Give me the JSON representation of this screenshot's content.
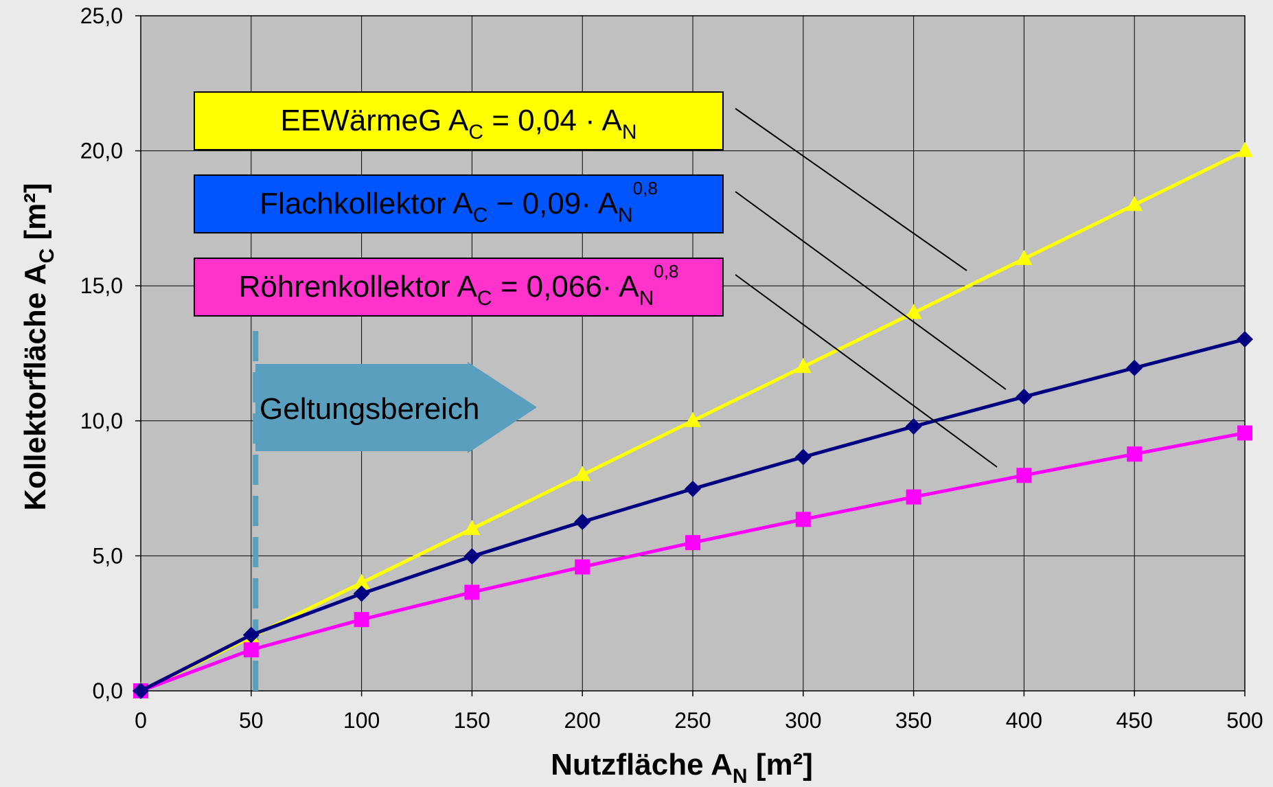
{
  "chart_data": {
    "type": "line",
    "x": [
      0,
      50,
      100,
      150,
      200,
      250,
      300,
      350,
      400,
      450,
      500
    ],
    "xlim": [
      0,
      500
    ],
    "ylim": [
      0,
      25
    ],
    "x_ticks": [
      "0",
      "50",
      "100",
      "150",
      "200",
      "250",
      "300",
      "350",
      "400",
      "450",
      "500"
    ],
    "y_ticks": [
      "0,0",
      "5,0",
      "10,0",
      "15,0",
      "20,0",
      "25,0"
    ],
    "y_tick_values": [
      0,
      5,
      10,
      15,
      20,
      25
    ],
    "grid": true,
    "xlabel": {
      "main": "Nutzfläche A",
      "sub": "N",
      "unit": " [m²]"
    },
    "ylabel": {
      "main": "Kollektorfläche A",
      "sub": "C",
      "unit": " [m²]"
    },
    "series": [
      {
        "color": "#ffff00",
        "marker": "triangle",
        "values": [
          0,
          2.0,
          4.0,
          6.0,
          8.0,
          10.0,
          12.0,
          14.0,
          16.0,
          18.0,
          20.0
        ]
      },
      {
        "color": "#000080",
        "marker": "diamond",
        "values": [
          0,
          2.07,
          3.6,
          4.98,
          6.26,
          7.48,
          8.66,
          9.79,
          10.89,
          11.96,
          13.02
        ]
      },
      {
        "color": "#ff00ff",
        "marker": "square",
        "values": [
          0,
          1.52,
          2.64,
          3.65,
          4.59,
          5.49,
          6.35,
          7.18,
          7.98,
          8.77,
          9.55
        ]
      }
    ],
    "annotations": [
      {
        "box_color": "#ffff00",
        "label": {
          "a": "EEWärmeG A",
          "b": "C",
          "c": " = 0,04 · A",
          "d": "N",
          "e": ""
        },
        "pointer_to_series": 0
      },
      {
        "box_color": "#0055ff",
        "label": {
          "a": "Flachkollektor A",
          "b": "C",
          "c": " − 0,09· A",
          "d": "N",
          "e": "0,8"
        },
        "pointer_to_series": 1
      },
      {
        "box_color": "#ff33cc",
        "label": {
          "a": "Röhrenkollektor A",
          "b": "C",
          "c": " = 0,066· A",
          "d": "N",
          "e": "0,8"
        },
        "pointer_to_series": 2
      }
    ],
    "validity": {
      "label": "Geltungsbereich",
      "x_start": 52,
      "color": "#5b9fbf"
    }
  }
}
